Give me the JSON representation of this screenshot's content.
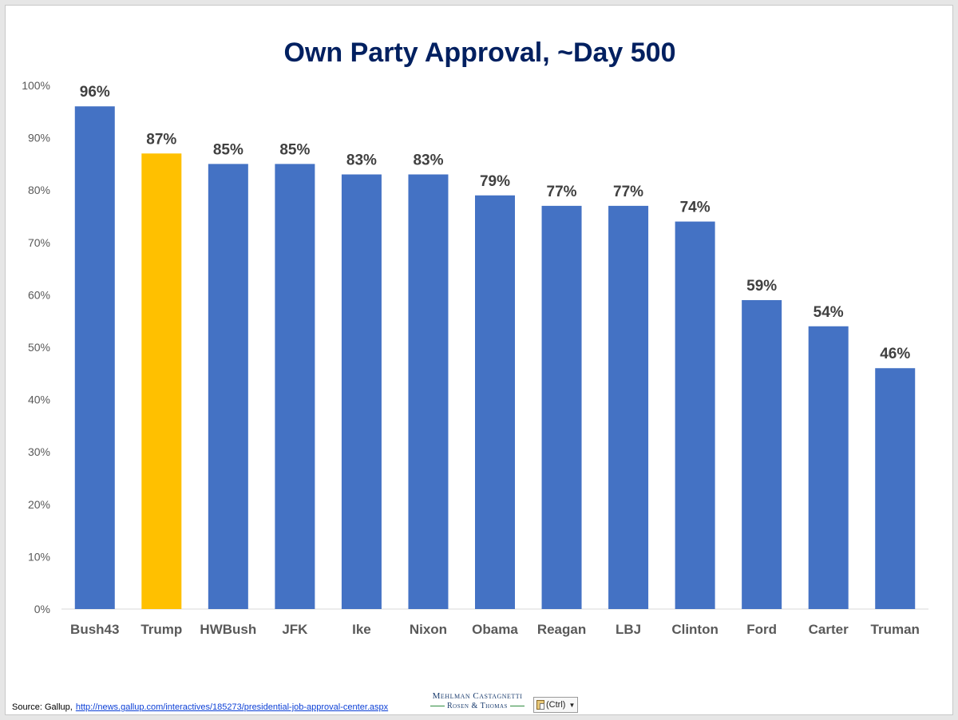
{
  "chart_data": {
    "type": "bar",
    "title": "Own Party Approval, ~Day 500",
    "categories": [
      "Bush43",
      "Trump",
      "HWBush",
      "JFK",
      "Ike",
      "Nixon",
      "Obama",
      "Reagan",
      "LBJ",
      "Clinton",
      "Ford",
      "Carter",
      "Truman"
    ],
    "values": [
      96,
      87,
      85,
      85,
      83,
      83,
      79,
      77,
      77,
      74,
      59,
      54,
      46
    ],
    "data_labels": [
      "96%",
      "87%",
      "85%",
      "85%",
      "83%",
      "83%",
      "79%",
      "77%",
      "77%",
      "74%",
      "59%",
      "54%",
      "46%"
    ],
    "xlabel": "",
    "ylabel": "",
    "ylim": [
      0,
      100
    ],
    "y_ticks": [
      "0%",
      "10%",
      "20%",
      "30%",
      "40%",
      "50%",
      "60%",
      "70%",
      "80%",
      "90%",
      "100%"
    ],
    "grid": false,
    "legend": "none",
    "colors": {
      "default_bar": "#4472C4",
      "highlight_bar": "#FFC000",
      "title": "#002060",
      "data_label": "#404040",
      "axis_label": "#595959"
    },
    "highlight_category": "Trump"
  },
  "footer": {
    "source_prefix": "Source: Gallup,",
    "source_link": "http://news.gallup.com/interactives/185273/presidential-job-approval-center.aspx",
    "logo_line1": "Mehlman Castagnetti",
    "logo_line2": "Rosen & Thomas",
    "paste_options_label": "(Ctrl)",
    "paste_icon": "clipboard-icon"
  }
}
